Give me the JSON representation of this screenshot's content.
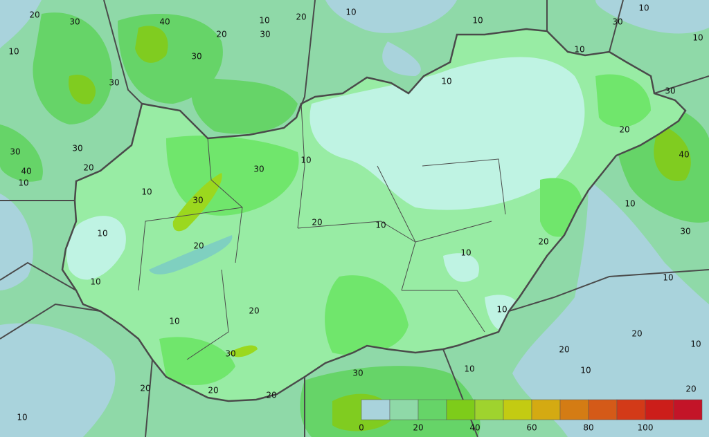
{
  "contour_labels": [
    "20",
    "30",
    "40",
    "10",
    "20",
    "10",
    "20",
    "30",
    "30",
    "10",
    "10",
    "30",
    "10",
    "10",
    "10",
    "30",
    "10",
    "30",
    "20",
    "30",
    "30",
    "40",
    "20",
    "10",
    "10",
    "30",
    "40",
    "10",
    "30",
    "10",
    "20",
    "10",
    "10",
    "30",
    "20",
    "20",
    "10",
    "10",
    "10",
    "20",
    "10",
    "10",
    "20",
    "10",
    "30",
    "20",
    "10",
    "30",
    "10",
    "20",
    "20",
    "20",
    "20",
    "10"
  ],
  "legend": {
    "ticks": [
      "0",
      "20",
      "40",
      "60",
      "80",
      "100"
    ],
    "colors": [
      "#a9d3dc",
      "#8fd9a8",
      "#66d468",
      "#7ecc1a",
      "#9fd32e",
      "#c3cb12",
      "#d4aa12",
      "#d47c14",
      "#d45a18",
      "#d33a18",
      "#cc1e1a",
      "#c31428"
    ]
  }
}
